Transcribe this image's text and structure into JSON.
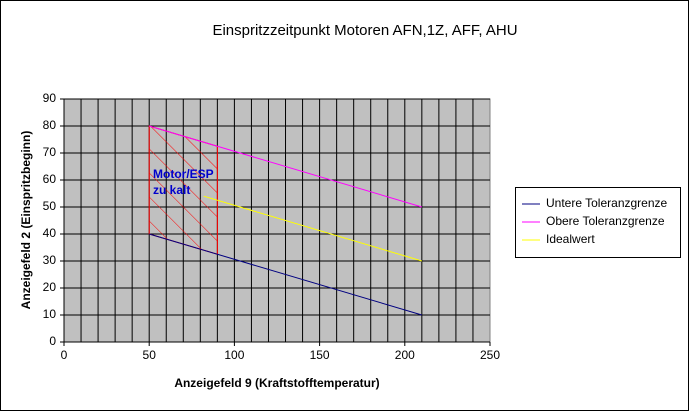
{
  "chart_data": {
    "type": "line",
    "title": "Einspritzzeitpunkt Motoren AFN,1Z, AFF, AHU",
    "x_label": "Anzeigefeld 9 (Kraftstofftemperatur)",
    "y_label": "Anzeigefeld 2 (Einspritzbeginn)",
    "annotation": [
      "Motor/ESP",
      "zu kalt"
    ],
    "series": [
      {
        "name": "Untere Toleranzgrenze",
        "color": "#000080",
        "x": [
          50,
          210
        ],
        "values": [
          40,
          10
        ]
      },
      {
        "name": "Obere Toleranzgrenze",
        "color": "#ff00ff",
        "x": [
          50,
          210
        ],
        "values": [
          80,
          50
        ]
      },
      {
        "name": "Idealwert",
        "color": "#ffff00",
        "x": [
          82,
          210
        ],
        "values": [
          54,
          30
        ]
      }
    ],
    "xlim": [
      0,
      250
    ],
    "xticks": [
      0,
      50,
      100,
      150,
      200,
      250
    ],
    "ylim": [
      0,
      90
    ],
    "yticks": [
      0,
      10,
      20,
      30,
      40,
      50,
      60,
      70,
      80,
      90
    ],
    "x_minor_grid": 10,
    "grid": true,
    "legend": "right"
  }
}
